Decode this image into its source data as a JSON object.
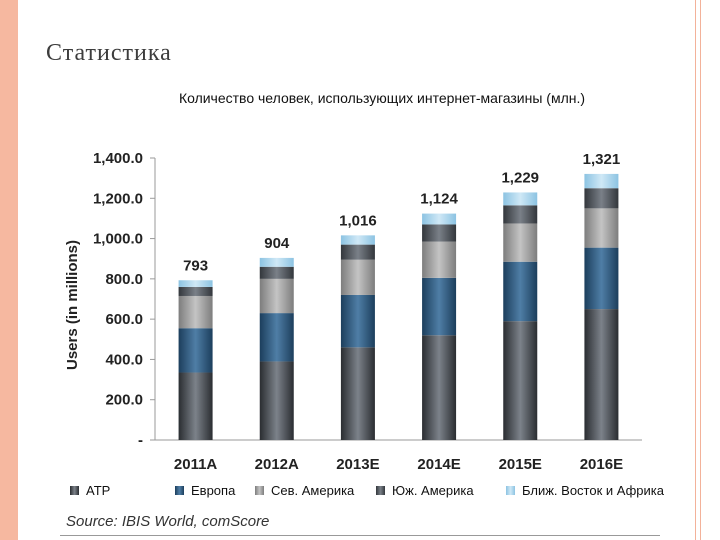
{
  "slide": {
    "title": "Статистика"
  },
  "source": "Source: IBIS World, comScore",
  "colors": {
    "frame": "#f6b8a0",
    "series": [
      "#3a3e44",
      "#2e5a7e",
      "#9a9a9a",
      "#555a60",
      "#a9d3ea"
    ]
  },
  "chart_data": {
    "type": "bar",
    "stacked": true,
    "title": "Количество человек, использующих интернет-магазины (млн.)",
    "ylabel": "Users (in millions)",
    "xlabel": "",
    "ylim": [
      0,
      1400
    ],
    "yticks": [
      0,
      200,
      400,
      600,
      800,
      1000,
      1200,
      1400
    ],
    "ytick_labels": [
      "-",
      "200.0",
      "400.0",
      "600.0",
      "800.0",
      "1,000.0",
      "1,200.0",
      "1,400.0"
    ],
    "categories": [
      "2011A",
      "2012A",
      "2013E",
      "2014E",
      "2015E",
      "2016E"
    ],
    "totals": [
      "793",
      "904",
      "1,016",
      "1,124",
      "1,229",
      "1,321"
    ],
    "legend_position": "bottom",
    "grid": false,
    "series": [
      {
        "name": "ATP",
        "values": [
          335,
          390,
          460,
          520,
          590,
          650
        ]
      },
      {
        "name": "Европа",
        "values": [
          220,
          240,
          260,
          285,
          295,
          305
        ]
      },
      {
        "name": "Сев. Америка",
        "values": [
          160,
          170,
          175,
          180,
          190,
          195
        ]
      },
      {
        "name": "Юж. Америка",
        "values": [
          45,
          60,
          75,
          85,
          90,
          100
        ]
      },
      {
        "name": "Ближ. Восток и Африка",
        "values": [
          33,
          44,
          46,
          54,
          64,
          71
        ]
      }
    ]
  }
}
